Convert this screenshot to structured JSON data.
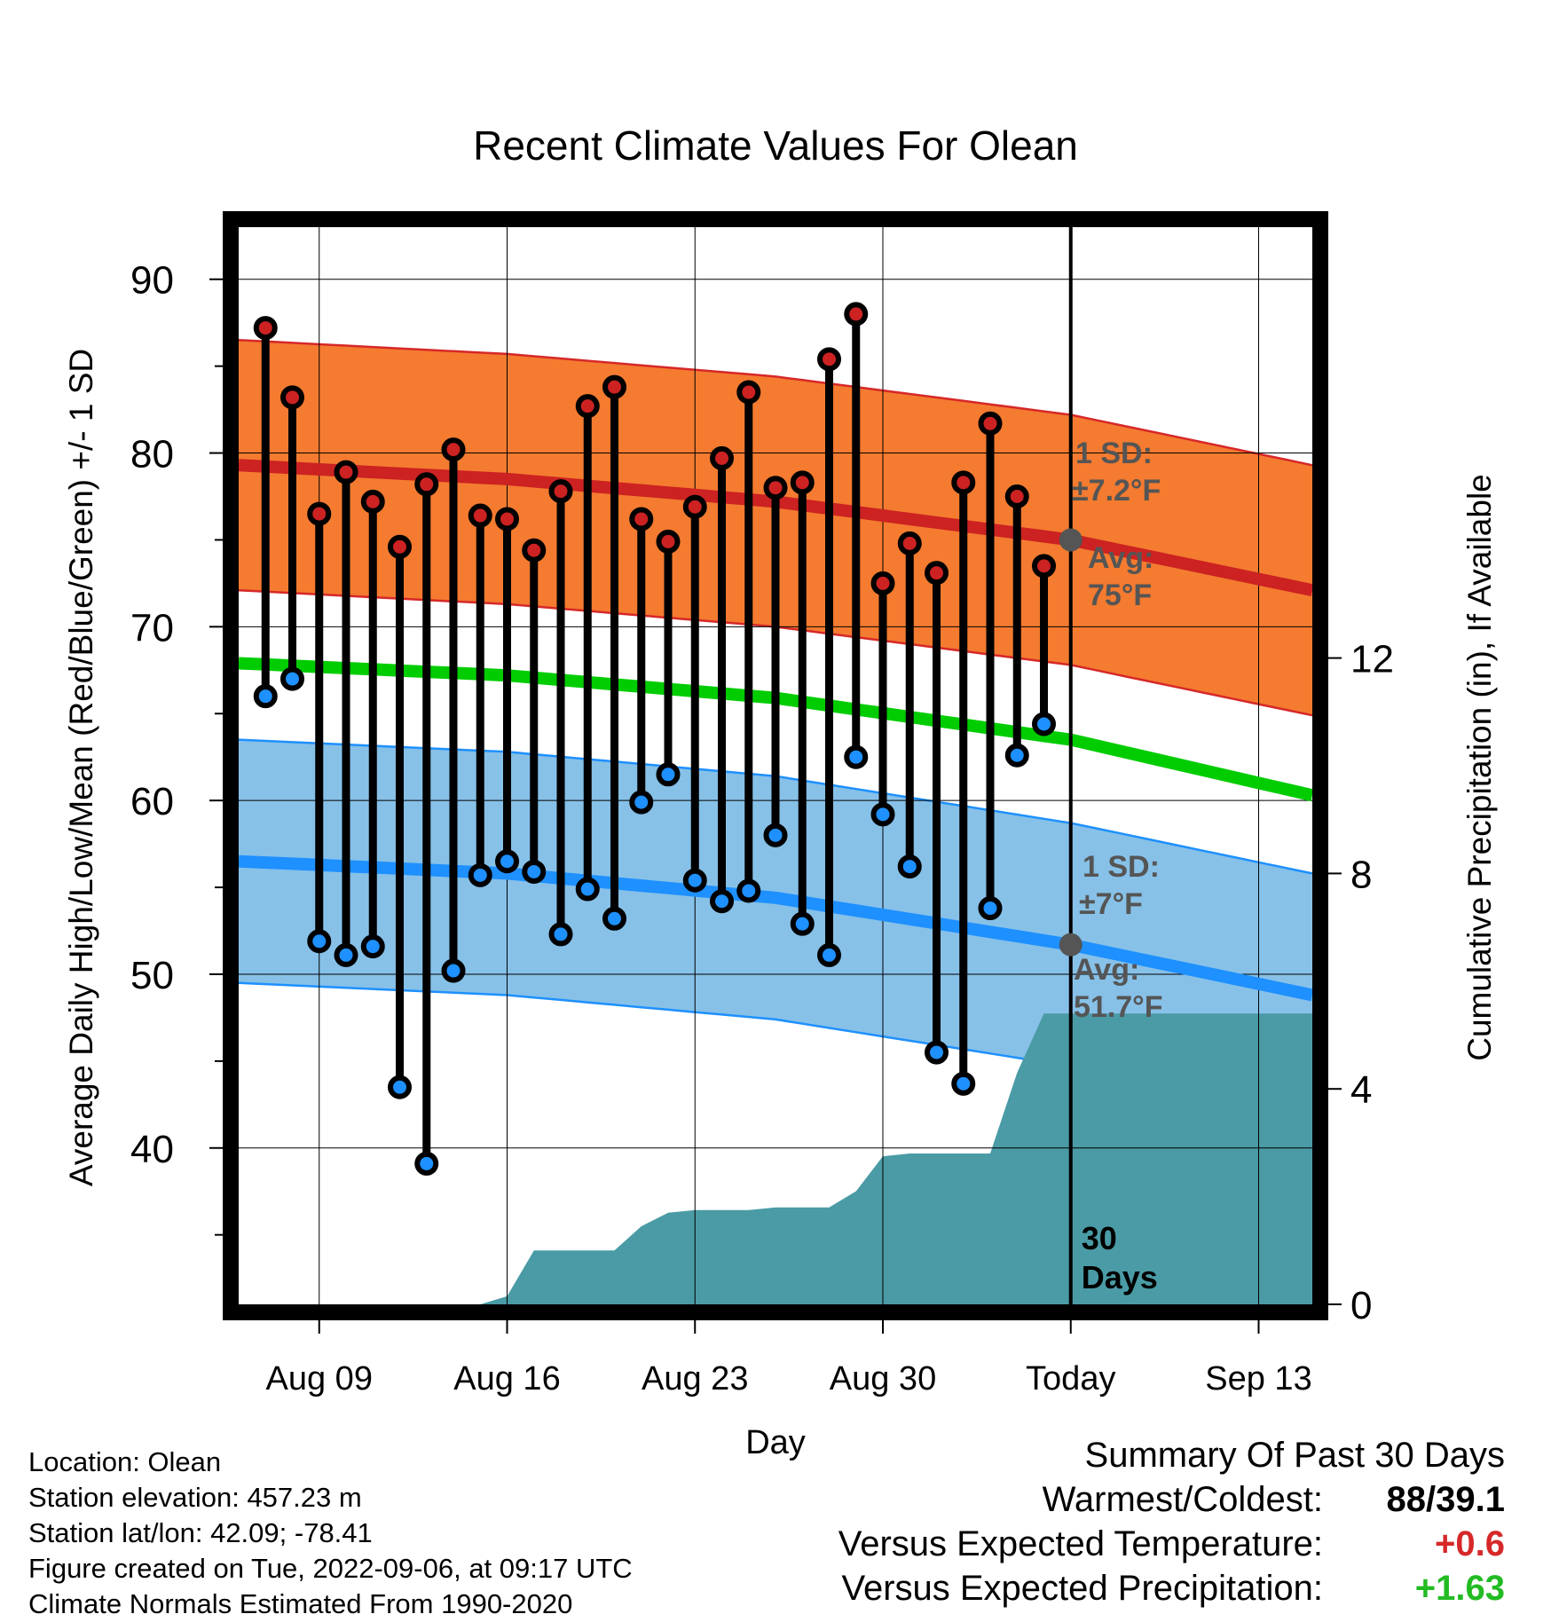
{
  "chart_data": {
    "type": "line",
    "title": "Recent Climate Values For Olean",
    "xlabel": "Day",
    "ylabel": "Average Daily High/Low/Mean (Red/Blue/Green) +/- 1 SD",
    "y2label": "Cumulative Precipitation (in), If Available",
    "x_range": [
      "Aug 06",
      "Sep 15"
    ],
    "ylim": [
      31,
      93
    ],
    "y2lim": [
      0,
      20
    ],
    "x_ticks": [
      {
        "date": "2022-08-09",
        "label": "Aug 09"
      },
      {
        "date": "2022-08-16",
        "label": "Aug 16"
      },
      {
        "date": "2022-08-23",
        "label": "Aug 23"
      },
      {
        "date": "2022-08-30",
        "label": "Aug 30"
      },
      {
        "date": "2022-09-06",
        "label": "Today"
      },
      {
        "date": "2022-09-13",
        "label": "Sep 13"
      }
    ],
    "y_ticks": [
      40,
      50,
      60,
      70,
      80,
      90
    ],
    "y2_ticks": [
      0,
      4,
      8,
      12
    ],
    "grid": true,
    "today_date": "2022-09-06",
    "today_label": "30 Days",
    "observed_dates": [
      "2022-08-07",
      "2022-08-08",
      "2022-08-09",
      "2022-08-10",
      "2022-08-11",
      "2022-08-12",
      "2022-08-13",
      "2022-08-14",
      "2022-08-15",
      "2022-08-16",
      "2022-08-17",
      "2022-08-18",
      "2022-08-19",
      "2022-08-20",
      "2022-08-21",
      "2022-08-22",
      "2022-08-23",
      "2022-08-24",
      "2022-08-25",
      "2022-08-26",
      "2022-08-27",
      "2022-08-28",
      "2022-08-29",
      "2022-08-30",
      "2022-08-31",
      "2022-09-01",
      "2022-09-02",
      "2022-09-03",
      "2022-09-04",
      "2022-09-05"
    ],
    "series": [
      {
        "name": "High",
        "color": "#cc2222",
        "values": [
          87.2,
          83.2,
          76.5,
          78.9,
          77.2,
          74.6,
          78.2,
          80.2,
          76.4,
          76.2,
          74.4,
          77.8,
          82.7,
          83.8,
          76.2,
          74.9,
          76.9,
          79.7,
          83.5,
          78.0,
          78.3,
          85.4,
          88.0,
          72.5,
          74.8,
          73.1,
          78.3,
          81.7,
          77.5,
          73.5
        ]
      },
      {
        "name": "Low",
        "color": "#1e90ff",
        "values": [
          66.0,
          67.0,
          51.9,
          51.1,
          51.6,
          43.5,
          39.1,
          50.2,
          55.7,
          56.5,
          55.9,
          52.3,
          54.9,
          53.2,
          59.9,
          61.5,
          55.4,
          54.2,
          54.8,
          58.0,
          52.9,
          51.1,
          62.5,
          59.2,
          56.2,
          45.5,
          43.7,
          53.8,
          62.6,
          64.4
        ]
      }
    ],
    "normals": {
      "dates": [
        "2022-08-06",
        "2022-08-16",
        "2022-08-26",
        "2022-09-06",
        "2022-09-15"
      ],
      "high_mean": [
        79.3,
        78.5,
        77.2,
        75.0,
        72.1
      ],
      "high_sd": 7.2,
      "low_mean": [
        56.5,
        55.8,
        54.4,
        51.7,
        48.8
      ],
      "low_sd": 7.0,
      "avg_mean": [
        67.9,
        67.2,
        65.9,
        63.5,
        60.3
      ],
      "high_band_color": "#f47b30",
      "high_line_color": "#cc2222",
      "low_band_color": "#87c1e8",
      "low_line_color": "#1e90ff",
      "mean_line_color": "#00cc00"
    },
    "precipitation": {
      "color": "#4a9ba5",
      "dates": [
        "2022-08-06",
        "2022-08-15",
        "2022-08-16",
        "2022-08-17",
        "2022-08-18",
        "2022-08-19",
        "2022-08-20",
        "2022-08-21",
        "2022-08-22",
        "2022-08-23",
        "2022-08-24",
        "2022-08-25",
        "2022-08-26",
        "2022-08-27",
        "2022-08-28",
        "2022-08-29",
        "2022-08-30",
        "2022-08-31",
        "2022-09-01",
        "2022-09-02",
        "2022-09-03",
        "2022-09-04",
        "2022-09-05",
        "2022-09-06",
        "2022-09-15"
      ],
      "values": [
        0,
        0,
        0.15,
        1.0,
        1.0,
        1.0,
        1.0,
        1.45,
        1.7,
        1.75,
        1.75,
        1.75,
        1.8,
        1.8,
        1.8,
        2.1,
        2.75,
        2.8,
        2.8,
        2.8,
        2.8,
        4.3,
        5.4,
        5.4,
        5.4
      ]
    },
    "annotations": {
      "high_sd_label": "1 SD:",
      "high_sd_value": "±7.2°F",
      "high_avg_label": "Avg:",
      "high_avg_value": "75°F",
      "low_sd_label": "1 SD:",
      "low_sd_value": "±7°F",
      "low_avg_label": "Avg:",
      "low_avg_value": "51.7°F"
    }
  },
  "info": {
    "location": "Location: Olean",
    "elevation": "Station elevation: 457.23 m",
    "latlon": "Station lat/lon: 42.09; -78.41",
    "created": "Figure created on Tue, 2022-09-06, at 09:17 UTC",
    "normals": "Climate Normals Estimated From 1990-2020"
  },
  "summary": {
    "title": "Summary Of Past 30 Days",
    "warmest_label": "Warmest/Coldest:",
    "warmest_value": "88/39.1",
    "temp_label": "Versus Expected Temperature:",
    "temp_value": "+0.6",
    "precip_label": "Versus Expected Precipitation:",
    "precip_value": "+1.63"
  }
}
